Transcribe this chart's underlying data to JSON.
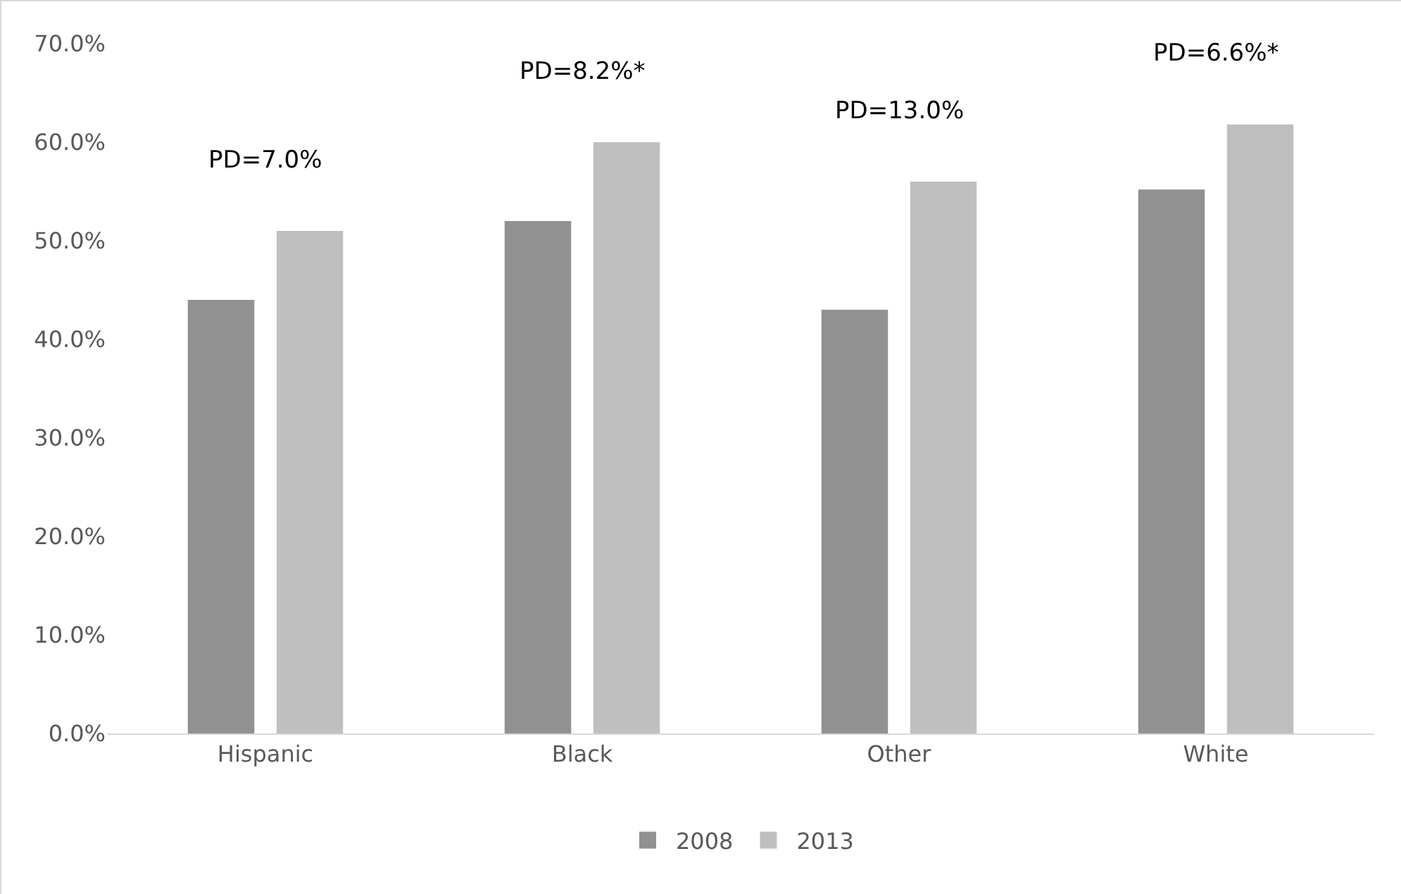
{
  "chart_data": {
    "type": "bar",
    "categories": [
      "Hispanic",
      "Black",
      "Other",
      "White"
    ],
    "series": [
      {
        "name": "2008",
        "color": "#919191",
        "values": [
          44.0,
          52.0,
          43.0,
          55.2
        ]
      },
      {
        "name": "2013",
        "color": "#bfbfbf",
        "values": [
          51.0,
          60.0,
          56.0,
          61.8
        ]
      }
    ],
    "ylim": [
      0,
      70
    ],
    "yticks": [
      {
        "value": 0,
        "label": "0.0%"
      },
      {
        "value": 10,
        "label": "10.0%"
      },
      {
        "value": 20,
        "label": "20.0%"
      },
      {
        "value": 30,
        "label": "30.0%"
      },
      {
        "value": 40,
        "label": "40.0%"
      },
      {
        "value": 50,
        "label": "50.0%"
      },
      {
        "value": 60,
        "label": "60.0%"
      },
      {
        "value": 70,
        "label": "70.0%"
      }
    ],
    "annotations": [
      "PD=7.0%",
      "PD=8.2%*",
      "PD=13.0%",
      "PD=6.6%*"
    ],
    "grid": false,
    "legend": "bottom"
  }
}
